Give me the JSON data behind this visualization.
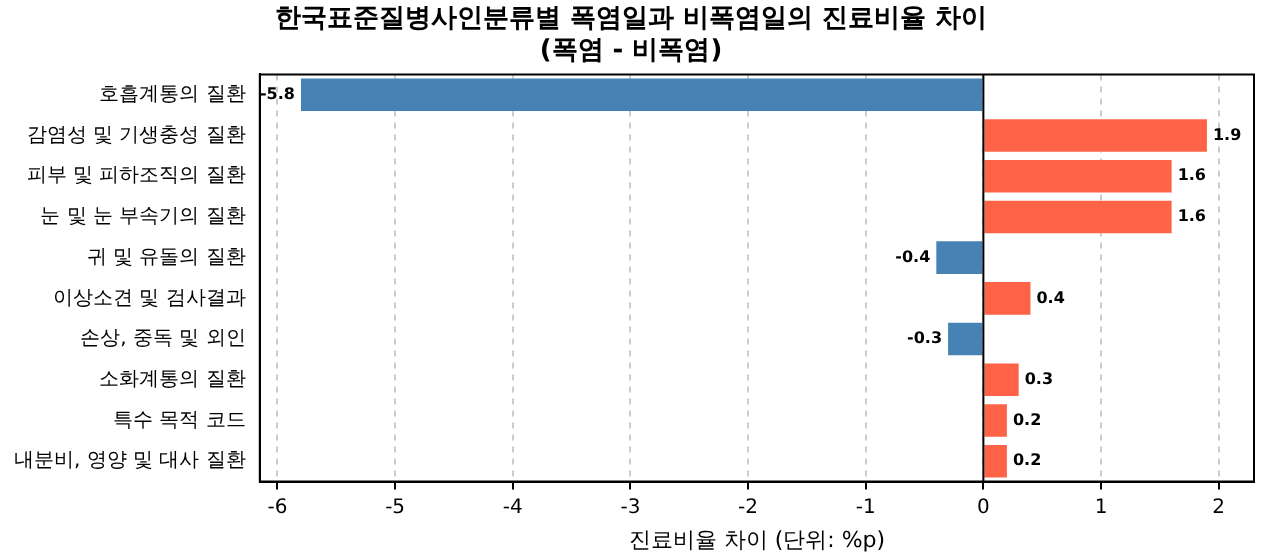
{
  "chart_data": {
    "type": "bar",
    "orientation": "horizontal",
    "title": "한국표준질병사인분류별 폭염일과 비폭염일의 진료비율 차이",
    "subtitle": "(폭염 - 비폭염)",
    "xlabel": "진료비율 차이 (단위: %p)",
    "categories": [
      "호흡계통의 질환",
      "감염성 및 기생충성 질환",
      "피부 및 피하조직의 질환",
      "눈 및 눈 부속기의 질환",
      "귀 및 유돌의 질환",
      "이상소견 및 검사결과",
      "손상, 중독 및 외인",
      "소화계통의 질환",
      "특수 목적 코드",
      "내분비, 영양 및 대사 질환"
    ],
    "values": [
      -5.8,
      1.9,
      1.6,
      1.6,
      -0.4,
      0.4,
      -0.3,
      0.3,
      0.2,
      0.2
    ],
    "colors": [
      "#4682b4",
      "#ff6347",
      "#ff6347",
      "#ff6347",
      "#4682b4",
      "#ff6347",
      "#4682b4",
      "#ff6347",
      "#ff6347",
      "#ff6347"
    ],
    "xlim": [
      -6.15,
      2.3
    ],
    "xticks": [
      -6,
      -5,
      -4,
      -3,
      -2,
      -1,
      0,
      1,
      2
    ],
    "ref_lines": [
      {
        "axis": "x",
        "value": 0,
        "color": "#000000",
        "line_style": "solid"
      }
    ],
    "grid": "x",
    "data_labels": true,
    "legend": false
  }
}
